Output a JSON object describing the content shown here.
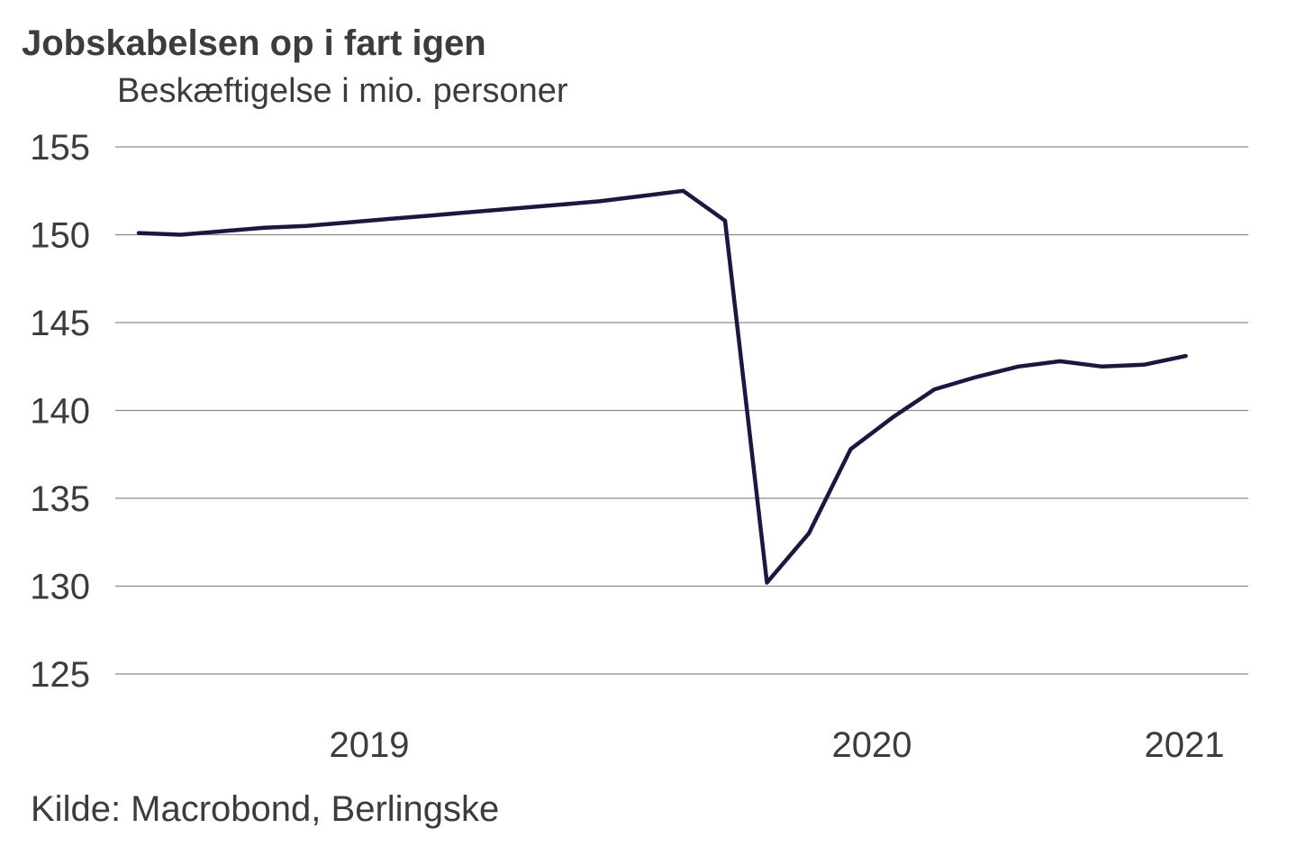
{
  "chart_data": {
    "type": "line",
    "title": "Jobskabelsen op i fart igen",
    "subtitle": "Beskæftigelse i mio. personer",
    "source": "Kilde: Macrobond, Berlingske",
    "ylim": [
      125,
      155
    ],
    "y_ticks": [
      155,
      150,
      145,
      140,
      135,
      130,
      125
    ],
    "x_tick_labels": [
      {
        "label": "2019",
        "x": "2019-01"
      },
      {
        "label": "2020",
        "x": "2020-01"
      },
      {
        "label": "2021",
        "x": "2021-01"
      }
    ],
    "grid": true,
    "color": "#1c1740",
    "series": [
      {
        "x": [
          "2018-07",
          "2018-08",
          "2018-09",
          "2018-10",
          "2018-11",
          "2018-12",
          "2019-01",
          "2019-02",
          "2019-03",
          "2019-04",
          "2019-05",
          "2019-06",
          "2019-07",
          "2019-08",
          "2019-09",
          "2019-10",
          "2019-11",
          "2019-12",
          "2020-01",
          "2020-02",
          "2020-03",
          "2020-04",
          "2020-05",
          "2020-06",
          "2020-07",
          "2020-08",
          "2020-09",
          "2020-10",
          "2020-11",
          "2020-12",
          "2021-01"
        ],
        "values": [
          150.1,
          150.0,
          150.2,
          150.4,
          150.5,
          150.7,
          150.9,
          151.1,
          151.3,
          151.5,
          151.7,
          151.9,
          152.2,
          152.5,
          150.8,
          130.2,
          133.0,
          137.8,
          139.6,
          141.2,
          141.9,
          142.5,
          142.8,
          142.5,
          142.6,
          143.1,
          null,
          null,
          null,
          null,
          null
        ]
      }
    ]
  }
}
